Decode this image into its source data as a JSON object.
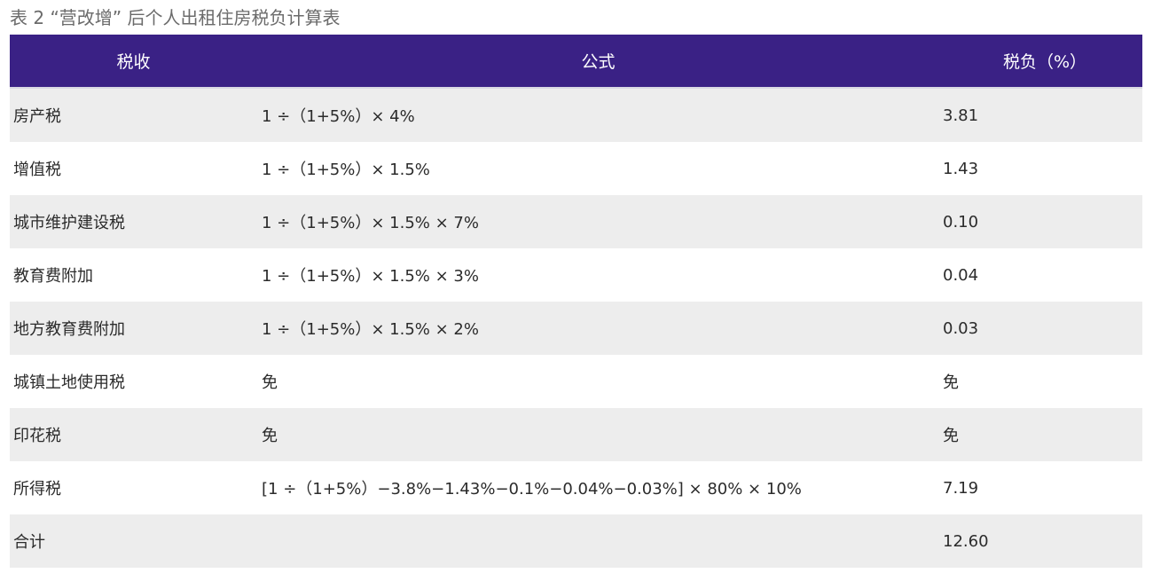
{
  "caption": "表 2 “营改增” 后个人出租住房税负计算表",
  "headers": [
    "税收",
    "公式",
    "税负（%）"
  ],
  "rows": [
    {
      "name": "房产税",
      "formula": "1 ÷（1+5%）× 4%",
      "burden": "3.81"
    },
    {
      "name": "增值税",
      "formula": "1 ÷（1+5%）× 1.5%",
      "burden": "1.43"
    },
    {
      "name": "城市维护建设税",
      "formula": "1 ÷（1+5%）× 1.5% × 7%",
      "burden": "0.10"
    },
    {
      "name": "教育费附加",
      "formula": "1 ÷（1+5%）× 1.5% × 3%",
      "burden": "0.04"
    },
    {
      "name": "地方教育费附加",
      "formula": "1 ÷（1+5%）× 1.5% × 2%",
      "burden": "0.03"
    },
    {
      "name": "城镇土地使用税",
      "formula": "免",
      "burden": "免"
    },
    {
      "name": "印花税",
      "formula": "免",
      "burden": "免"
    },
    {
      "name": "所得税",
      "formula": "[1 ÷（1+5%）−3.8%−1.43%−0.1%−0.04%−0.03%] × 80% × 10%",
      "burden": "7.19"
    },
    {
      "name": "合计",
      "formula": "",
      "burden": "12.60"
    }
  ],
  "colors": {
    "header_bg": "#3a2185",
    "header_text": "#ffffff",
    "stripe": "#ededed",
    "caption_text": "#6b6b6b"
  }
}
